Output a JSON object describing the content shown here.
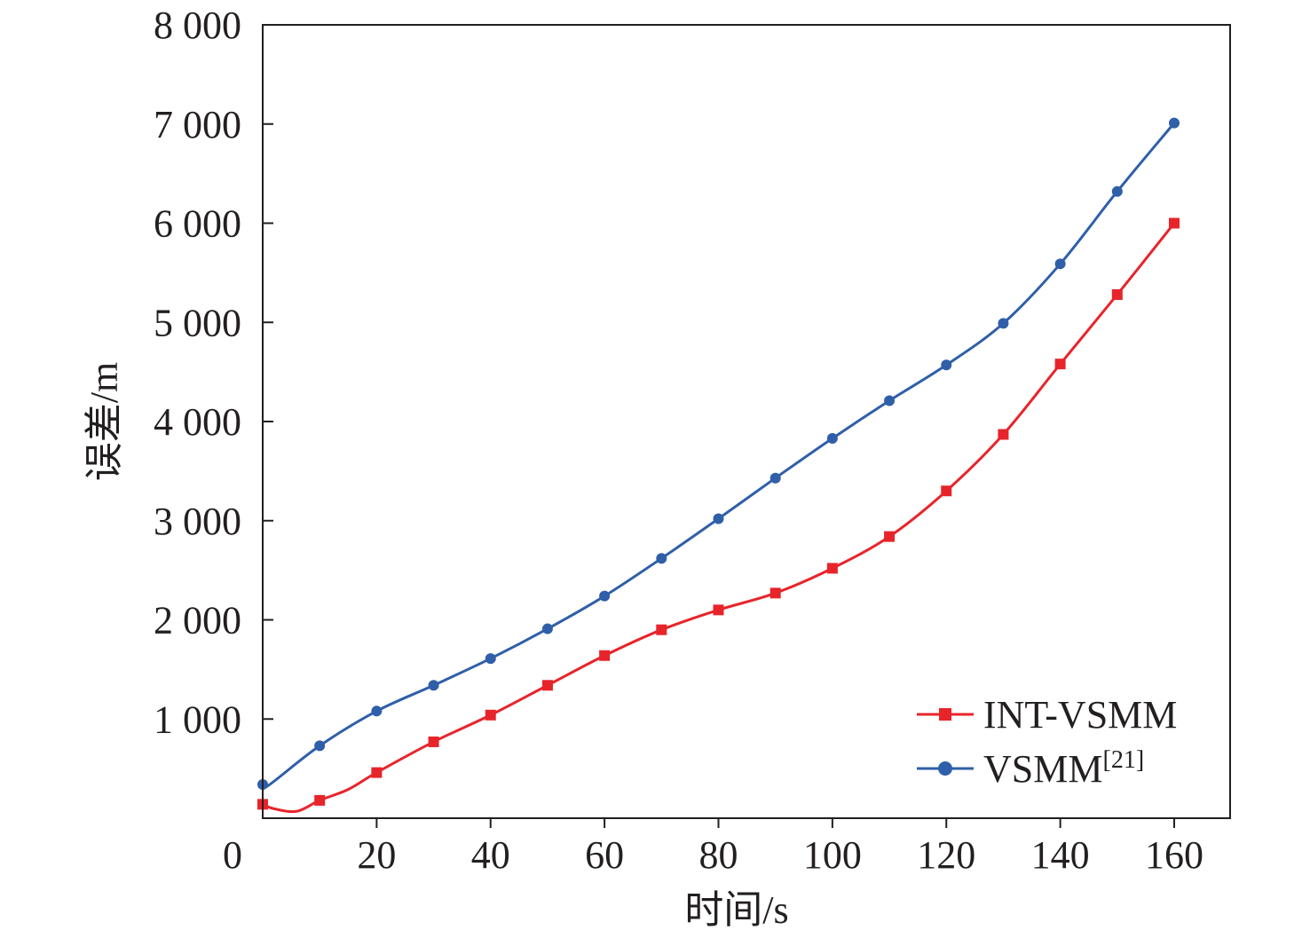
{
  "chart_data": {
    "type": "line",
    "title": "",
    "xlabel": "时间/s",
    "ylabel": "误差/m",
    "xlim": [
      0,
      170
    ],
    "ylim": [
      0,
      8000
    ],
    "x_ticks": [
      0,
      20,
      40,
      60,
      80,
      100,
      120,
      140,
      160
    ],
    "x_tick_labels": [
      "0",
      "20",
      "40",
      "60",
      "80",
      "100",
      "120",
      "140",
      "160"
    ],
    "y_ticks": [
      1000,
      2000,
      3000,
      4000,
      5000,
      6000,
      7000,
      8000
    ],
    "y_tick_labels": [
      "1 000",
      "2 000",
      "3 000",
      "4 000",
      "5 000",
      "6 000",
      "7 000",
      "8 000"
    ],
    "grid": false,
    "legend_position": "bottom-right",
    "series": [
      {
        "name": "INT-VSMM",
        "color": "#e8242b",
        "marker": "square",
        "x": [
          0,
          2,
          6,
          10,
          15,
          20,
          30,
          40,
          50,
          60,
          70,
          80,
          90,
          100,
          110,
          120,
          130,
          140,
          150,
          160
        ],
        "values": [
          140,
          95,
          70,
          180,
          290,
          460,
          770,
          1040,
          1340,
          1640,
          1900,
          2100,
          2270,
          2520,
          2840,
          3300,
          3870,
          4580,
          5280,
          6000
        ]
      },
      {
        "name": "VSMM",
        "legend_sup": "[21]",
        "color": "#2f5fa8",
        "marker": "circle",
        "x": [
          0,
          1,
          10,
          20,
          30,
          40,
          50,
          60,
          70,
          80,
          90,
          100,
          110,
          120,
          130,
          140,
          150,
          160
        ],
        "values": [
          340,
          330,
          730,
          1080,
          1340,
          1610,
          1910,
          2240,
          2620,
          3020,
          3430,
          3830,
          4210,
          4570,
          4990,
          5590,
          6320,
          7010
        ]
      }
    ]
  }
}
